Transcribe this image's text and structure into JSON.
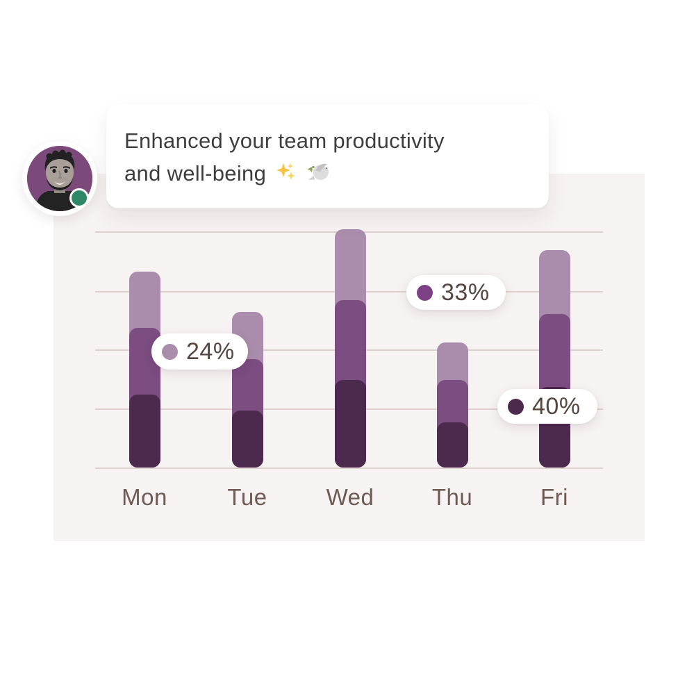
{
  "card": {
    "title_line1": "Enhanced your team productivity",
    "title_line2": "and well-being",
    "emoji_icons": [
      "sparkles",
      "dove-of-peace"
    ]
  },
  "avatar": {
    "description": "black-and-white portrait photo of a smiling man with curly hair and beard on a purple circle",
    "background_color": "#7b4a7b",
    "status": "online",
    "status_dot_color": "#2e8766"
  },
  "chart_data": {
    "type": "stacked-bar",
    "title": "",
    "categories": [
      "Mon",
      "Tue",
      "Wed",
      "Thu",
      "Fri"
    ],
    "series": [
      {
        "name": "dark-segment",
        "color": "#4c2a4e",
        "values": [
          31,
          24,
          37,
          19,
          34
        ]
      },
      {
        "name": "medium-segment",
        "color": "#7c4d80",
        "values": [
          28,
          22,
          34,
          18,
          31
        ]
      },
      {
        "name": "light-segment",
        "color": "#aa8dac",
        "values": [
          24,
          20,
          30,
          16,
          27
        ]
      }
    ],
    "unit": "percent",
    "ylim": [
      0,
      100
    ],
    "grid": true,
    "gridline_count": 5,
    "y_axis_labels_visible": false,
    "legend_position": "floating-badges",
    "badges": [
      {
        "label": "24%",
        "dot_color": "#aa8dac",
        "attached_series": "light-segment"
      },
      {
        "label": "33%",
        "dot_color": "#7c4184",
        "attached_series": "medium-segment"
      },
      {
        "label": "40%",
        "dot_color": "#4c2a4e",
        "attached_series": "dark-segment"
      }
    ],
    "panel_background": "#f7f3f2",
    "gridline_color": "#ddd0cd"
  }
}
